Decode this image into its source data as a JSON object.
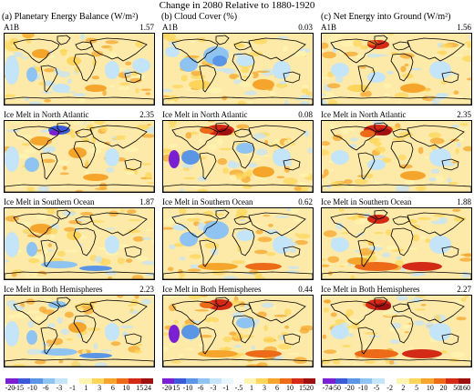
{
  "figure_title": "Change in 2080 Relative to 1880-1920",
  "columns": [
    {
      "heading": "(a) Planetary Energy Balance (W/m²)",
      "panels": [
        {
          "scenario": "A1B",
          "value": "1.57",
          "style": "a1"
        },
        {
          "scenario": "Ice Melt in North Atlantic",
          "value": "2.35",
          "style": "a2"
        },
        {
          "scenario": "Ice Melt in Southern Ocean",
          "value": "1.87",
          "style": "a3"
        },
        {
          "scenario": "Ice Melt in Both Hemispheres",
          "value": "2.23",
          "style": "a4"
        }
      ],
      "colorbar": {
        "ticks": [
          "-20",
          "-15",
          "-10",
          "-6",
          "-3",
          "-1",
          "1",
          "3",
          "6",
          "10",
          "15",
          "24"
        ],
        "colors": [
          "#7a1fd1",
          "#3c5ad8",
          "#5b95e6",
          "#8fc3f2",
          "#c4e4f7",
          "#ffffff",
          "#fff3b0",
          "#fcd55a",
          "#f6a52c",
          "#ec6a18",
          "#d32a16",
          "#9e1010"
        ]
      }
    },
    {
      "heading": "(b) Cloud Cover (%)",
      "panels": [
        {
          "scenario": "A1B",
          "value": "0.03",
          "style": "b1"
        },
        {
          "scenario": "Ice Melt in North Atlantic",
          "value": "0.08",
          "style": "b2"
        },
        {
          "scenario": "Ice Melt in Southern Ocean",
          "value": "0.62",
          "style": "b3"
        },
        {
          "scenario": "Ice Melt in Both Hemispheres",
          "value": "0.44",
          "style": "b4"
        }
      ],
      "colorbar": {
        "ticks": [
          "-20",
          "-15",
          "-10",
          "-6",
          "-3",
          "-1",
          "-.5",
          "1",
          "3",
          "6",
          "10",
          "15",
          "20"
        ],
        "colors": [
          "#7a1fd1",
          "#3c5ad8",
          "#5b95e6",
          "#8fc3f2",
          "#c4e4f7",
          "#e8f5fb",
          "#ffffff",
          "#fff3b0",
          "#fcd55a",
          "#f6a52c",
          "#ec6a18",
          "#d32a16",
          "#9e1010"
        ]
      }
    },
    {
      "heading": "(c) Net Energy into Ground (W/m²)",
      "panels": [
        {
          "scenario": "A1B",
          "value": "1.56",
          "style": "c1"
        },
        {
          "scenario": "Ice Melt in North Atlantic",
          "value": "2.35",
          "style": "c2"
        },
        {
          "scenario": "Ice Melt in Southern Ocean",
          "value": "1.88",
          "style": "c3"
        },
        {
          "scenario": "Ice Melt in Both Hemispheres",
          "value": "2.27",
          "style": "c4"
        }
      ],
      "colorbar": {
        "ticks": [
          "-74",
          "-50",
          "-20",
          "-10",
          "-5",
          "-2",
          "2",
          "5",
          "10",
          "20",
          "50",
          "160"
        ],
        "colors": [
          "#7a1fd1",
          "#3c5ad8",
          "#5b95e6",
          "#8fc3f2",
          "#c4e4f7",
          "#ffffff",
          "#fff3b0",
          "#fcd55a",
          "#f6a52c",
          "#ec6a18",
          "#d32a16",
          "#9e1010"
        ]
      }
    }
  ],
  "palette": {
    "land": "#ffffff",
    "warm_background": "#fde9a8",
    "coast": "#000000"
  }
}
